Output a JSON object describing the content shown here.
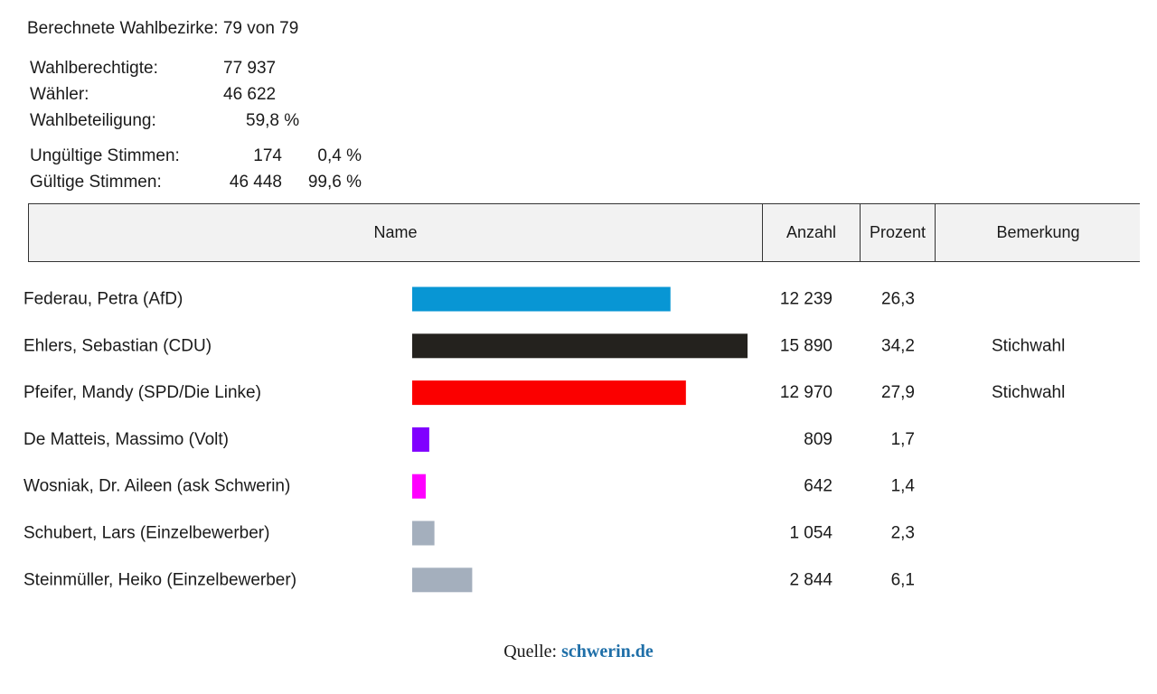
{
  "summary": {
    "districts": "Berechnete Wahlbezirke: 79 von 79",
    "eligible_label": "Wahlberechtigte:",
    "eligible_value": "77 937",
    "voters_label": "Wähler:",
    "voters_value": "46 622",
    "turnout_label": "Wahlbeteiligung:",
    "turnout_value": "59,8 %",
    "invalid_label": "Ungültige Stimmen:",
    "invalid_count": "174",
    "invalid_pct": "0,4 %",
    "valid_label": "Gültige Stimmen:",
    "valid_count": "46 448",
    "valid_pct": "99,6 %"
  },
  "table": {
    "headers": {
      "name": "Name",
      "count": "Anzahl",
      "percent": "Prozent",
      "remark": "Bemerkung"
    }
  },
  "chart_data": {
    "type": "bar",
    "orientation": "horizontal",
    "categories": [
      "Federau, Petra (AfD)",
      "Ehlers, Sebastian (CDU)",
      "Pfeifer, Mandy (SPD/Die Linke)",
      "De Matteis, Massimo (Volt)",
      "Wosniak, Dr. Aileen (ask Schwerin)",
      "Schubert, Lars (Einzelbewerber)",
      "Steinmüller, Heiko (Einzelbewerber)"
    ],
    "values": [
      12239,
      15890,
      12970,
      809,
      642,
      1054,
      2844
    ],
    "count_labels": [
      "12 239",
      "15 890",
      "12 970",
      "809",
      "642",
      "1 054",
      "2 844"
    ],
    "percent_labels": [
      "26,3",
      "34,2",
      "27,9",
      "1,7",
      "1,4",
      "2,3",
      "6,1"
    ],
    "remarks": [
      "",
      "Stichwahl",
      "Stichwahl",
      "",
      "",
      "",
      ""
    ],
    "colors": [
      "#0896d4",
      "#24221e",
      "#fb0000",
      "#8000ff",
      "#ff00ff",
      "#a4afbd",
      "#a4afbd"
    ],
    "grid": false,
    "legend": "none"
  },
  "source": {
    "label": "Quelle:",
    "link": "schwerin.de"
  }
}
